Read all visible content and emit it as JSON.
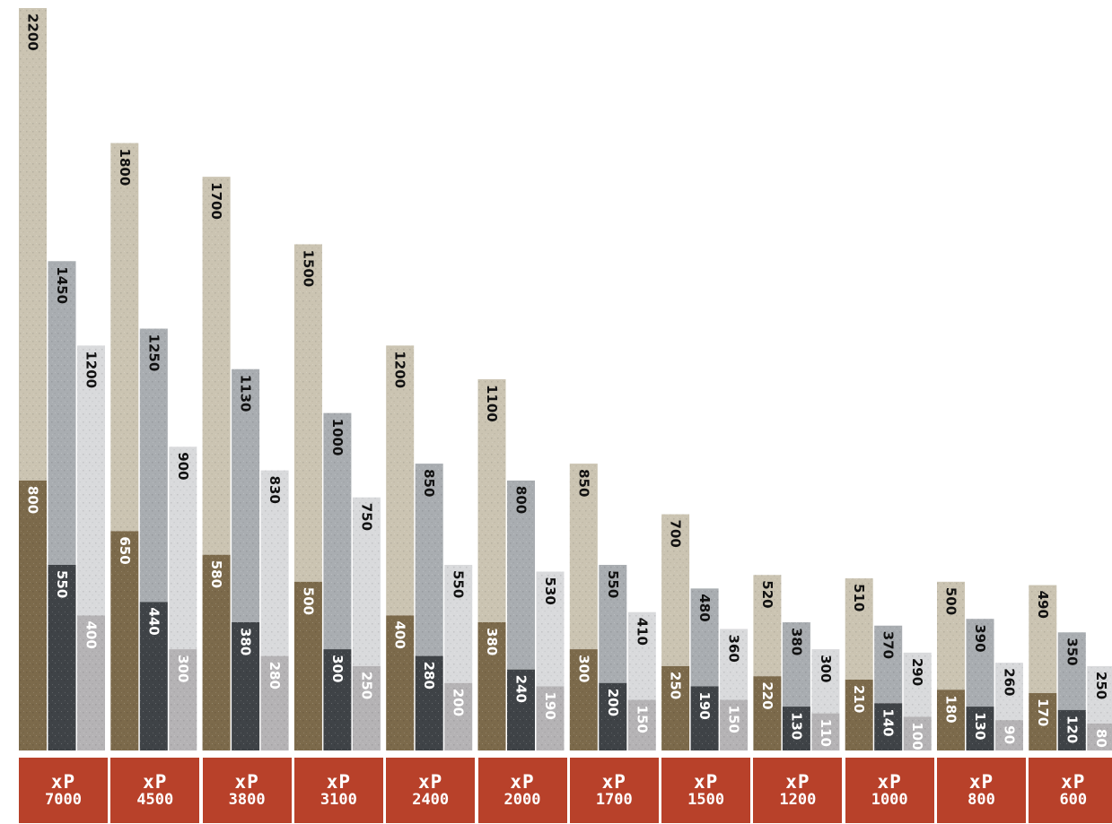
{
  "chart_data": {
    "type": "bar",
    "categories": [
      {
        "prefix": "xP",
        "value": "7000"
      },
      {
        "prefix": "xP",
        "value": "4500"
      },
      {
        "prefix": "xP",
        "value": "3800"
      },
      {
        "prefix": "xP",
        "value": "3100"
      },
      {
        "prefix": "xP",
        "value": "2400"
      },
      {
        "prefix": "xP",
        "value": "2000"
      },
      {
        "prefix": "xP",
        "value": "1700"
      },
      {
        "prefix": "xP",
        "value": "1500"
      },
      {
        "prefix": "xP",
        "value": "1200"
      },
      {
        "prefix": "xP",
        "value": "1000"
      },
      {
        "prefix": "xP",
        "value": "800"
      },
      {
        "prefix": "xP",
        "value": "600"
      }
    ],
    "groups": [
      [
        {
          "total": 2200,
          "base": 800
        },
        {
          "total": 1450,
          "base": 550
        },
        {
          "total": 1200,
          "base": 400
        }
      ],
      [
        {
          "total": 1800,
          "base": 650
        },
        {
          "total": 1250,
          "base": 440
        },
        {
          "total": 900,
          "base": 300
        }
      ],
      [
        {
          "total": 1700,
          "base": 580
        },
        {
          "total": 1130,
          "base": 380
        },
        {
          "total": 830,
          "base": 280
        }
      ],
      [
        {
          "total": 1500,
          "base": 500
        },
        {
          "total": 1000,
          "base": 300
        },
        {
          "total": 750,
          "base": 250
        }
      ],
      [
        {
          "total": 1200,
          "base": 400
        },
        {
          "total": 850,
          "base": 280
        },
        {
          "total": 550,
          "base": 200
        }
      ],
      [
        {
          "total": 1100,
          "base": 380
        },
        {
          "total": 800,
          "base": 240
        },
        {
          "total": 530,
          "base": 190
        }
      ],
      [
        {
          "total": 850,
          "base": 300
        },
        {
          "total": 550,
          "base": 200
        },
        {
          "total": 410,
          "base": 150
        }
      ],
      [
        {
          "total": 700,
          "base": 250
        },
        {
          "total": 480,
          "base": 190
        },
        {
          "total": 360,
          "base": 150
        }
      ],
      [
        {
          "total": 520,
          "base": 220
        },
        {
          "total": 380,
          "base": 130
        },
        {
          "total": 300,
          "base": 110
        }
      ],
      [
        {
          "total": 510,
          "base": 210
        },
        {
          "total": 370,
          "base": 140
        },
        {
          "total": 290,
          "base": 100
        }
      ],
      [
        {
          "total": 500,
          "base": 180
        },
        {
          "total": 390,
          "base": 130
        },
        {
          "total": 260,
          "base": 90
        }
      ],
      [
        {
          "total": 490,
          "base": 170
        },
        {
          "total": 350,
          "base": 120
        },
        {
          "total": 250,
          "base": 80
        }
      ]
    ],
    "ylim": [
      0,
      2200
    ],
    "grid": false,
    "legend": "none",
    "colors": {
      "label_box": "#b8412a",
      "bar1_top": "#cbc4b2",
      "bar1_base": "#7c6a4b",
      "bar2_top": "#a9adb1",
      "bar2_base": "#3f4347",
      "bar3_top": "#d9dadc",
      "bar3_base": "#b5b3b5",
      "label_dark": "#111111",
      "label_light": "#ffffff"
    }
  }
}
